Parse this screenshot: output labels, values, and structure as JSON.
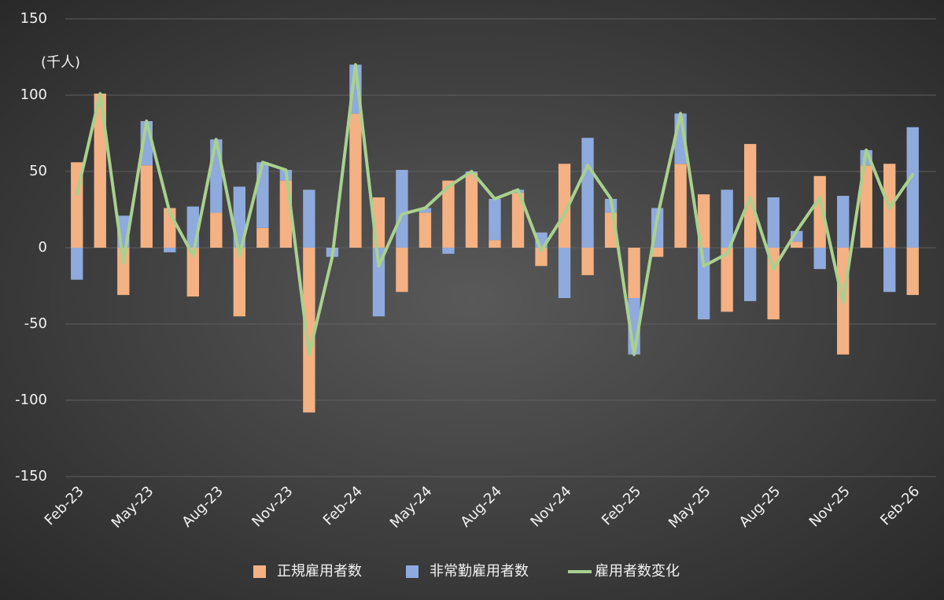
{
  "chart_data": {
    "type": "bar",
    "unit_label": "(千人)",
    "categories": [
      "Feb-23",
      null,
      null,
      "May-23",
      null,
      null,
      "Aug-23",
      null,
      null,
      "Nov-23",
      null,
      null,
      "Feb-24",
      null,
      null,
      "May-24",
      null,
      null,
      "Aug-24",
      null,
      null,
      "Nov-24",
      null,
      null,
      "Feb-25",
      null,
      null,
      "May-25",
      null,
      null,
      "Aug-25",
      null,
      null,
      "Nov-25",
      null,
      null,
      "Feb-26"
    ],
    "series": [
      {
        "name": "正規雇用者数",
        "color": "#f4b183",
        "type": "bar",
        "values": [
          56,
          101,
          -31,
          54,
          26,
          -32,
          23,
          -45,
          13,
          44,
          -108,
          0,
          88,
          33,
          -29,
          23,
          44,
          49,
          5,
          36,
          -12,
          55,
          -18,
          23,
          -33,
          -6,
          55,
          35,
          -42,
          68,
          -47,
          4,
          47,
          -70,
          54,
          55,
          -31
        ]
      },
      {
        "name": "非常勤雇用者数",
        "color": "#8faadc",
        "type": "bar",
        "values": [
          -21,
          0,
          21,
          29,
          -3,
          27,
          48,
          40,
          43,
          7,
          38,
          -6,
          32,
          -45,
          51,
          3,
          -4,
          1,
          27,
          2,
          10,
          -33,
          72,
          9,
          -37,
          26,
          33,
          -47,
          38,
          -35,
          33,
          7,
          -14,
          34,
          10,
          -29,
          79
        ]
      },
      {
        "name": "雇用者数変化",
        "color": "#a9d18e",
        "type": "line",
        "values": [
          35,
          101,
          -10,
          83,
          23,
          -5,
          71,
          -5,
          56,
          51,
          -70,
          -6,
          120,
          -12,
          22,
          26,
          40,
          50,
          32,
          38,
          -2,
          22,
          54,
          32,
          -70,
          20,
          88,
          -12,
          -4,
          33,
          -14,
          11,
          33,
          -36,
          64,
          26,
          48
        ]
      }
    ],
    "ylim": [
      -150,
      150
    ],
    "yticks": [
      -150,
      -100,
      -50,
      0,
      50,
      100,
      150
    ],
    "grid": true
  }
}
